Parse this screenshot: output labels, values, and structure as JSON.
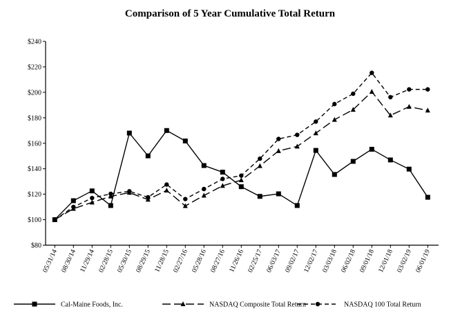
{
  "chart_data": {
    "type": "line",
    "title": "Comparison of 5 Year Cumulative Total Return",
    "xlabel": "",
    "ylabel": "",
    "ylim": [
      80,
      240
    ],
    "yticks": [
      80,
      100,
      120,
      140,
      160,
      180,
      200,
      220,
      240
    ],
    "ytick_labels": [
      "$80",
      "$100",
      "$120",
      "$140",
      "$160",
      "$180",
      "$200",
      "$220",
      "$240"
    ],
    "grid": false,
    "legend_position": "bottom",
    "categories": [
      "05/31/14",
      "08/30/14",
      "11/29/14",
      "02/28/15",
      "05/30/15",
      "08/29/15",
      "11/28/15",
      "02/27/16",
      "05/28/16",
      "08/27/16",
      "11/26/16",
      "02/25/17",
      "06/03/17",
      "09/02/17",
      "12/02/17",
      "03/03/18",
      "06/02/18",
      "09/01/18",
      "12/01/18",
      "03/02/19",
      "06/01/19"
    ],
    "series": [
      {
        "name": "Cal-Maine Foods, Inc.",
        "marker": "square",
        "line": "solid",
        "color": "#000000",
        "values": [
          100,
          114.9,
          122.6,
          111.1,
          168.0,
          150.1,
          170.0,
          161.8,
          142.5,
          137.3,
          125.9,
          118.3,
          120.3,
          111.1,
          154.4,
          135.5,
          145.8,
          155.3,
          146.9,
          139.7,
          117.6
        ]
      },
      {
        "name": "NASDAQ Composite Total Return",
        "marker": "triangle",
        "line": "long-dash",
        "color": "#000000",
        "values": [
          100,
          108.6,
          113.6,
          118.3,
          121.2,
          115.8,
          123.0,
          110.8,
          119.0,
          126.6,
          131.1,
          142.2,
          154.0,
          157.5,
          167.9,
          178.5,
          186.4,
          200.5,
          181.9,
          188.7,
          185.8
        ]
      },
      {
        "name": "NASDAQ 100 Total Return",
        "marker": "circle",
        "line": "short-dash",
        "color": "#000000",
        "values": [
          100,
          110.0,
          117.0,
          120.3,
          122.3,
          117.6,
          127.6,
          116.2,
          124.1,
          132.0,
          134.6,
          147.9,
          163.4,
          166.6,
          177.0,
          190.8,
          198.9,
          215.3,
          196.2,
          202.3,
          202.3
        ]
      }
    ]
  }
}
